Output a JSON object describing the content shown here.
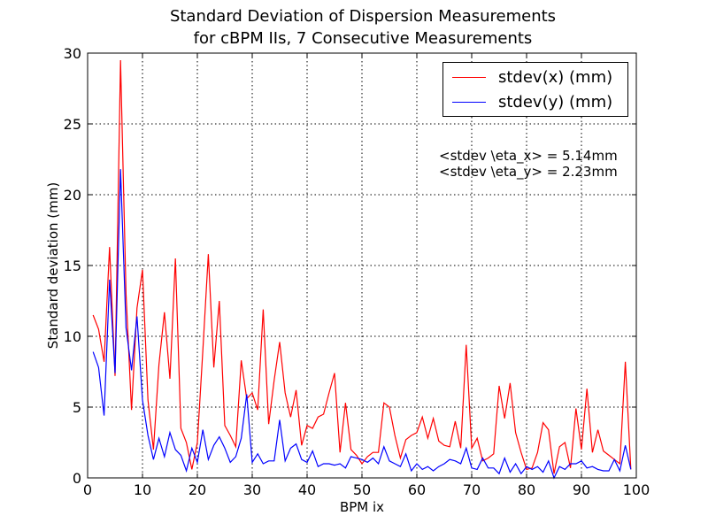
{
  "chart_data": {
    "type": "line",
    "title_line1": "Standard Deviation of Dispersion Measurements",
    "title_line2": "for cBPM IIs, 7 Consecutive Measurements",
    "xlabel": "BPM ix",
    "ylabel": "Standard deviation (mm)",
    "xlim": [
      0,
      100
    ],
    "ylim": [
      0,
      30
    ],
    "xticks": [
      0,
      10,
      20,
      30,
      40,
      50,
      60,
      70,
      80,
      90,
      100
    ],
    "yticks": [
      0,
      5,
      10,
      15,
      20,
      25,
      30
    ],
    "grid": true,
    "legend_position": "top-right",
    "annotations": [
      "<stdev \\eta_x> = 5.14mm",
      "<stdev \\eta_y> = 2.23mm"
    ],
    "series": [
      {
        "name": "stdev(x) (mm)",
        "color": "#ff0000",
        "x": [
          1,
          2,
          3,
          4,
          5,
          6,
          7,
          8,
          9,
          10,
          11,
          12,
          13,
          14,
          15,
          16,
          17,
          18,
          19,
          20,
          21,
          22,
          23,
          24,
          25,
          26,
          27,
          28,
          29,
          30,
          31,
          32,
          33,
          34,
          35,
          36,
          37,
          38,
          39,
          40,
          41,
          42,
          43,
          44,
          45,
          46,
          47,
          48,
          49,
          50,
          51,
          52,
          53,
          54,
          55,
          56,
          57,
          58,
          59,
          60,
          61,
          62,
          63,
          64,
          65,
          66,
          67,
          68,
          69,
          70,
          71,
          72,
          73,
          74,
          75,
          76,
          77,
          78,
          79,
          80,
          81,
          82,
          83,
          84,
          85,
          86,
          87,
          88,
          89,
          90,
          91,
          92,
          93,
          94,
          95,
          96,
          97,
          98,
          99
        ],
        "values": [
          11.5,
          10.5,
          8.2,
          16.3,
          7.2,
          29.5,
          13.0,
          4.8,
          12.0,
          14.7,
          5.5,
          2.0,
          8.0,
          11.7,
          7.0,
          15.5,
          3.5,
          2.5,
          0.6,
          2.5,
          9.0,
          15.8,
          7.8,
          12.5,
          3.7,
          3.0,
          2.2,
          8.3,
          5.6,
          6.0,
          4.8,
          11.9,
          3.8,
          6.9,
          9.6,
          6.0,
          4.3,
          6.2,
          2.3,
          3.7,
          3.5,
          4.3,
          4.5,
          6.0,
          7.4,
          1.8,
          5.3,
          2.0,
          1.6,
          1.0,
          1.5,
          1.8,
          1.8,
          5.3,
          5.0,
          3.0,
          1.4,
          2.7,
          3.0,
          3.2,
          4.3,
          2.8,
          4.2,
          2.6,
          2.3,
          2.2,
          4.0,
          2.1,
          9.4,
          2.1,
          2.8,
          1.2,
          1.4,
          1.7,
          6.5,
          4.2,
          6.7,
          3.2,
          1.8,
          0.6,
          0.7,
          1.8,
          3.9,
          3.4,
          0.3,
          2.2,
          2.5,
          0.7,
          4.9,
          2.0,
          6.3,
          1.8,
          3.4,
          1.9,
          1.6,
          1.3,
          1.0,
          8.2,
          0.6
        ]
      },
      {
        "name": "stdev(y) (mm)",
        "color": "#0000ff",
        "x": [
          1,
          2,
          3,
          4,
          5,
          6,
          7,
          8,
          9,
          10,
          11,
          12,
          13,
          14,
          15,
          16,
          17,
          18,
          19,
          20,
          21,
          22,
          23,
          24,
          25,
          26,
          27,
          28,
          29,
          30,
          31,
          32,
          33,
          34,
          35,
          36,
          37,
          38,
          39,
          40,
          41,
          42,
          43,
          44,
          45,
          46,
          47,
          48,
          49,
          50,
          51,
          52,
          53,
          54,
          55,
          56,
          57,
          58,
          59,
          60,
          61,
          62,
          63,
          64,
          65,
          66,
          67,
          68,
          69,
          70,
          71,
          72,
          73,
          74,
          75,
          76,
          77,
          78,
          79,
          80,
          81,
          82,
          83,
          84,
          85,
          86,
          87,
          88,
          89,
          90,
          91,
          92,
          93,
          94,
          95,
          96,
          97,
          98,
          99
        ],
        "values": [
          8.9,
          7.8,
          4.4,
          14.0,
          7.4,
          21.8,
          10.6,
          7.6,
          11.4,
          5.5,
          3.0,
          1.3,
          2.8,
          1.5,
          3.2,
          2.0,
          1.6,
          0.5,
          2.1,
          1.1,
          3.4,
          1.3,
          2.3,
          2.9,
          2.1,
          1.1,
          1.5,
          2.8,
          5.9,
          1.1,
          1.7,
          1.0,
          1.2,
          1.2,
          4.1,
          1.2,
          2.1,
          2.4,
          1.3,
          1.1,
          1.9,
          0.8,
          1.0,
          1.0,
          0.9,
          1.0,
          0.7,
          1.5,
          1.4,
          1.3,
          1.1,
          1.4,
          1.0,
          2.2,
          1.2,
          1.0,
          0.8,
          1.7,
          0.5,
          1.0,
          0.6,
          0.8,
          0.5,
          0.8,
          1.0,
          1.3,
          1.2,
          1.0,
          2.1,
          0.7,
          0.6,
          1.4,
          0.7,
          0.7,
          0.3,
          1.4,
          0.4,
          1.0,
          0.3,
          0.8,
          0.6,
          0.8,
          0.4,
          1.2,
          0.0,
          0.8,
          0.6,
          1.0,
          1.0,
          1.2,
          0.7,
          0.8,
          0.6,
          0.5,
          0.5,
          1.3,
          0.5,
          2.3,
          0.6
        ]
      }
    ]
  }
}
